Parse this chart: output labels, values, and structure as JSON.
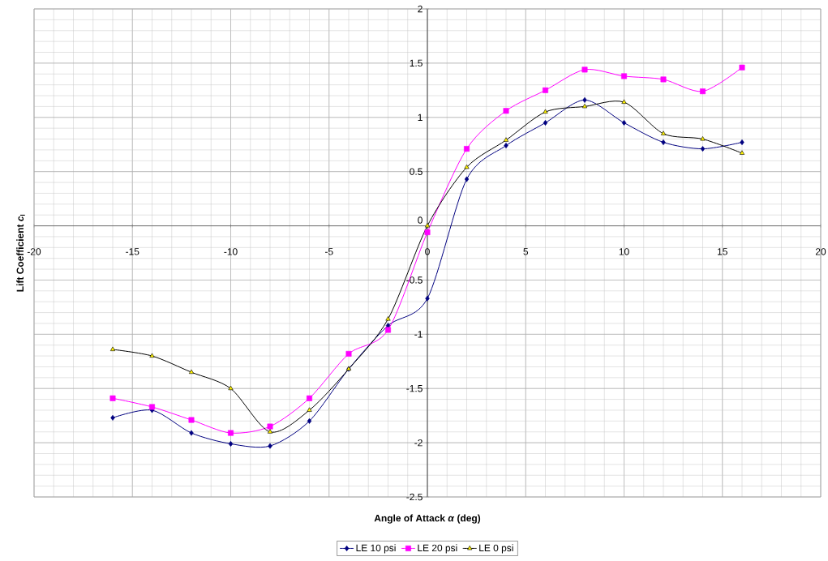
{
  "chart_data": {
    "type": "line",
    "xlabel": "Angle of Attack *α* (deg)",
    "ylabel": "Lift Coefficient *c*$_{l}$",
    "x": [
      -16,
      -14,
      -12,
      -10,
      -8,
      -6,
      -4,
      -2,
      0,
      2,
      4,
      6,
      8,
      10,
      12,
      14,
      16
    ],
    "series": [
      {
        "name": "LE 10 psi",
        "color": "#000080",
        "marker": "diamond",
        "values": [
          -1.77,
          -1.7,
          -1.91,
          -2.01,
          -2.03,
          -1.8,
          -1.32,
          -0.92,
          -0.67,
          0.43,
          0.74,
          0.95,
          1.16,
          0.95,
          0.77,
          0.71,
          0.77
        ]
      },
      {
        "name": "LE 20 psi",
        "color": "#ff00ff",
        "marker": "square",
        "values": [
          -1.59,
          -1.67,
          -1.79,
          -1.91,
          -1.85,
          -1.59,
          -1.18,
          -0.96,
          -0.06,
          0.71,
          1.06,
          1.25,
          1.44,
          1.38,
          1.35,
          1.24,
          1.46
        ]
      },
      {
        "name": "LE 0 psi",
        "color": "#000000",
        "marker": "triangle",
        "values": [
          -1.14,
          -1.2,
          -1.35,
          -1.5,
          -1.9,
          -1.7,
          -1.32,
          -0.86,
          0,
          0.54,
          0.79,
          1.05,
          1.1,
          1.14,
          0.85,
          0.8,
          0.67
        ]
      }
    ],
    "xlim": [
      -20,
      20
    ],
    "ylim": [
      -2.5,
      2
    ],
    "xticks": [
      -20,
      -15,
      -10,
      -5,
      0,
      5,
      10,
      15,
      20
    ],
    "yticks": [
      -2.5,
      -2,
      -1.5,
      -1,
      -0.5,
      0,
      0.5,
      1,
      1.5,
      2
    ],
    "grid": true,
    "legend": "bottom",
    "line_style": "solid"
  }
}
